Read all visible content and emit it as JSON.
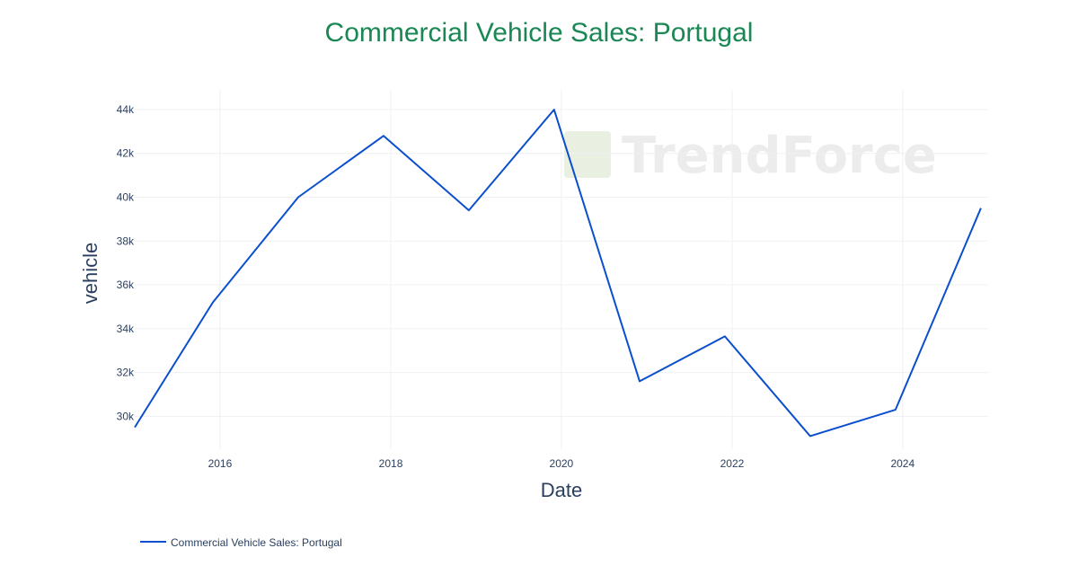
{
  "colors": {
    "title": "#1a8754",
    "line": "#0b4fce",
    "grid": "#eef0f4",
    "text": "#2a3f5f",
    "watermark": "#9a9a9a"
  },
  "watermark": "TrendForce",
  "chart_data": {
    "type": "line",
    "title": "Commercial Vehicle Sales: Portugal",
    "xlabel": "Date",
    "ylabel": "vehicle",
    "x_tick_labels": [
      "2016",
      "2018",
      "2020",
      "2022",
      "2024"
    ],
    "y_tick_labels": [
      "30k",
      "32k",
      "34k",
      "36k",
      "38k",
      "40k",
      "42k",
      "44k"
    ],
    "xlim": [
      "2015-01-01",
      "2025-01-01"
    ],
    "ylim": [
      28500,
      44900
    ],
    "grid": true,
    "legend_position": "bottom-left",
    "series": [
      {
        "name": "Commercial Vehicle Sales: Portugal",
        "x": [
          "2015-01-01",
          "2015-12-01",
          "2016-12-01",
          "2017-12-01",
          "2018-12-01",
          "2019-12-01",
          "2020-12-01",
          "2021-12-01",
          "2022-12-01",
          "2023-12-01",
          "2024-12-01"
        ],
        "values": [
          29500,
          35200,
          40000,
          42800,
          39400,
          44000,
          31600,
          33650,
          29100,
          30300,
          39500
        ]
      }
    ]
  }
}
